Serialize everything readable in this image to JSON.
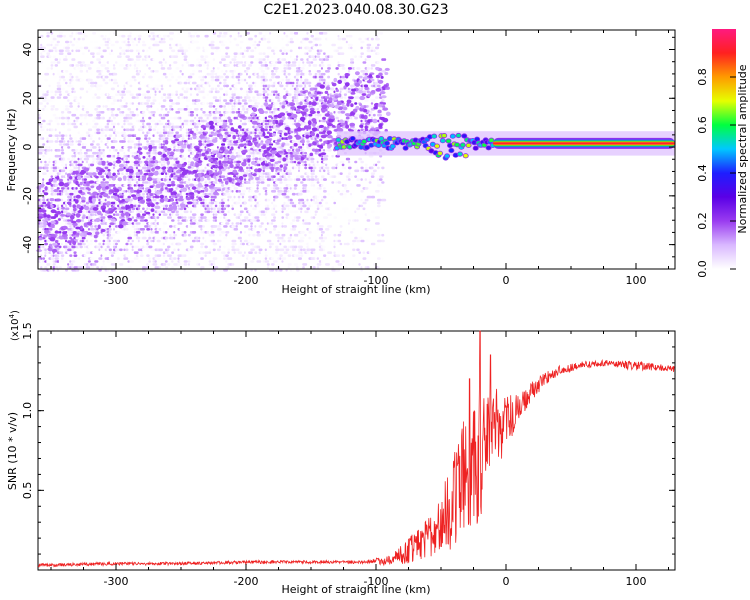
{
  "title": "C2E1.2023.040.08.30.G23",
  "chart_data": [
    {
      "type": "heatmap",
      "xlabel": "Height of straight line (km)",
      "ylabel": "Frequency (Hz)",
      "xlim": [
        -360,
        130
      ],
      "ylim": [
        -50,
        48
      ],
      "x_ticks": [
        -300,
        -200,
        -100,
        0,
        100
      ],
      "y_ticks": [
        -40,
        -20,
        0,
        20,
        40
      ],
      "x_tick_labels": [
        "-300",
        "-200",
        "-100",
        "0",
        "100"
      ],
      "y_tick_labels": [
        "-40",
        "-20",
        "0",
        "20",
        "40"
      ],
      "colorbar": {
        "label": "Normalized spectral amplitude",
        "range": [
          0,
          1
        ],
        "ticks": [
          0.0,
          0.2,
          0.4,
          0.6,
          0.8
        ],
        "tick_labels": [
          "0.0",
          "0.2",
          "0.4",
          "0.6",
          "0.8"
        ],
        "colors": [
          "#ffffff",
          "#d9b8ff",
          "#9a3cf0",
          "#5a00e6",
          "#1e1eff",
          "#00c8ff",
          "#00ff40",
          "#e6ff00",
          "#ff9a00",
          "#ff2020",
          "#ff1a80"
        ]
      },
      "features": {
        "scatter_region_x": [
          -360,
          -95
        ],
        "scatter_drift_hz_per_km": 0.19,
        "band_center_hz": 1.5,
        "band_half_width_hz": 2.5,
        "band_start_x": -130,
        "band_strong_start_x": -10
      },
      "grid": false
    },
    {
      "type": "line",
      "xlabel": "Height of straight line (km)",
      "ylabel": "SNR (10 * v/v)",
      "y_multiplier": "(x10",
      "y_multiplier_exp": "4",
      "y_multiplier_close": ")",
      "xlim": [
        -360,
        130
      ],
      "ylim": [
        0,
        1.5
      ],
      "x_ticks": [
        -300,
        -200,
        -100,
        0,
        100
      ],
      "y_ticks": [
        0.5,
        1.0,
        1.5
      ],
      "x_tick_labels": [
        "-300",
        "-200",
        "-100",
        "0",
        "100"
      ],
      "y_tick_labels": [
        "0.5",
        "1.0",
        "1.5"
      ],
      "series": [
        {
          "color": "#ee2222",
          "x": [
            -360,
            -300,
            -250,
            -200,
            -150,
            -110,
            -90,
            -75,
            -60,
            -45,
            -35,
            -25,
            -20,
            -15,
            -10,
            -5,
            0,
            10,
            20,
            30,
            40,
            60,
            80,
            100,
            120,
            130
          ],
          "y": [
            0.03,
            0.04,
            0.04,
            0.05,
            0.05,
            0.05,
            0.06,
            0.12,
            0.2,
            0.35,
            0.55,
            0.7,
            0.72,
            0.78,
            0.85,
            0.88,
            0.92,
            1.02,
            1.12,
            1.2,
            1.25,
            1.29,
            1.3,
            1.28,
            1.27,
            1.26
          ],
          "noise_amplitude": [
            0.01,
            0.01,
            0.01,
            0.01,
            0.01,
            0.01,
            0.03,
            0.08,
            0.12,
            0.25,
            0.35,
            0.4,
            0.45,
            0.35,
            0.3,
            0.25,
            0.18,
            0.08,
            0.06,
            0.04,
            0.03,
            0.02,
            0.02,
            0.03,
            0.02,
            0.02
          ],
          "peaks": [
            {
              "x": -20,
              "y": 1.55
            },
            {
              "x": -28,
              "y": 1.2
            },
            {
              "x": -12,
              "y": 1.35
            }
          ]
        }
      ],
      "grid": false
    }
  ]
}
